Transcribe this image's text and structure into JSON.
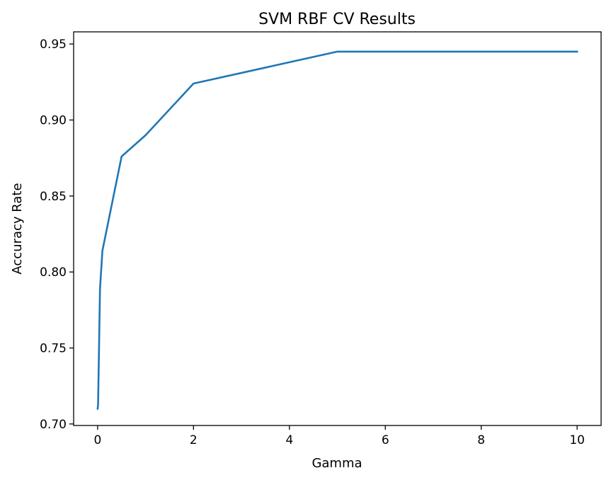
{
  "chart_data": {
    "type": "line",
    "title": "SVM RBF CV Results",
    "xlabel": "Gamma",
    "ylabel": "Accuracy Rate",
    "xlim": [
      -0.5,
      10.5
    ],
    "ylim": [
      0.699,
      0.958
    ],
    "xticks": [
      0,
      2,
      4,
      6,
      8,
      10
    ],
    "xtick_labels": [
      "0",
      "2",
      "4",
      "6",
      "8",
      "10"
    ],
    "yticks": [
      0.7,
      0.75,
      0.8,
      0.85,
      0.9,
      0.95
    ],
    "ytick_labels": [
      "0.70",
      "0.75",
      "0.80",
      "0.85",
      "0.90",
      "0.95"
    ],
    "grid": false,
    "series": [
      {
        "color": "#1f77b4",
        "x": [
          0.001,
          0.01,
          0.05,
          0.1,
          0.5,
          1,
          2,
          5,
          10
        ],
        "y": [
          0.71,
          0.713,
          0.789,
          0.814,
          0.876,
          0.89,
          0.924,
          0.945,
          0.945
        ]
      }
    ]
  }
}
